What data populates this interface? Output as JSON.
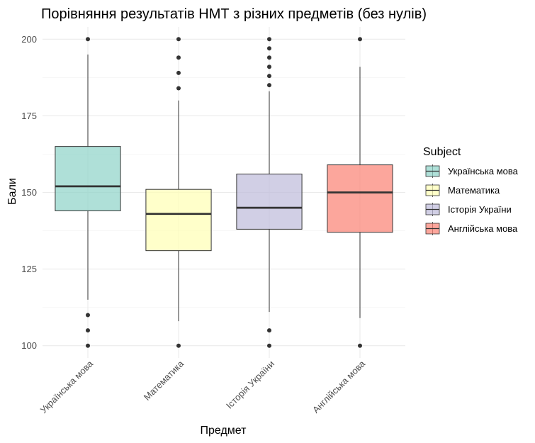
{
  "chart_data": {
    "type": "boxplot",
    "title": "Порівняння результатів НМТ з різних предметів (без нулів)",
    "xlabel": "Предмет",
    "ylabel": "Бали",
    "ylim": [
      96,
      204
    ],
    "yticks": [
      100,
      125,
      150,
      175,
      200
    ],
    "grid": true,
    "legend": {
      "title": "Subject",
      "position": "right"
    },
    "categories": [
      "Українська мова",
      "Математика",
      "Історія України",
      "Англійська мова"
    ],
    "colors": [
      "#8dd3c7",
      "#ffffb3",
      "#bebada",
      "#fb8072"
    ],
    "series": [
      {
        "name": "Українська мова",
        "whisker_low": 115,
        "q1": 144,
        "median": 152,
        "q3": 165,
        "whisker_high": 195,
        "outliers": [
          100,
          105,
          110,
          200
        ]
      },
      {
        "name": "Математика",
        "whisker_low": 108,
        "q1": 131,
        "median": 143,
        "q3": 151,
        "whisker_high": 180,
        "outliers": [
          100,
          184,
          189,
          194,
          200
        ]
      },
      {
        "name": "Історія України",
        "whisker_low": 111,
        "q1": 138,
        "median": 145,
        "q3": 156,
        "whisker_high": 183,
        "outliers": [
          100,
          105,
          185,
          188,
          191,
          194,
          197,
          200
        ]
      },
      {
        "name": "Англійська мова",
        "whisker_low": 109,
        "q1": 137,
        "median": 150,
        "q3": 159,
        "whisker_high": 191,
        "outliers": [
          100,
          200
        ]
      }
    ]
  }
}
